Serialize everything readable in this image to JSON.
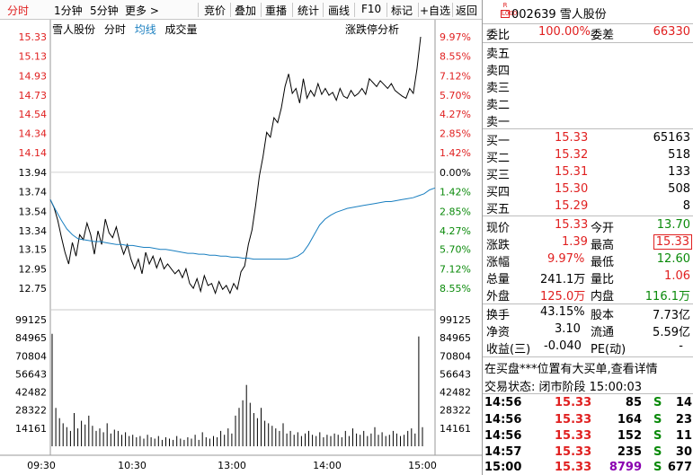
{
  "toolbar": {
    "left_tabs": [
      "分时",
      "1分钟",
      "5分钟",
      "更多 >"
    ],
    "right_tabs": [
      "竞价",
      "叠加",
      "重播",
      "统计",
      "画线",
      "F10",
      "标记",
      "+自选",
      "返回"
    ]
  },
  "chart_header": {
    "stock_name": "雪人股份",
    "mode": "分时",
    "avg_label": "均线",
    "vol_label": "成交量",
    "limit_analysis": "涨跌停分析"
  },
  "chart_data": {
    "type": "line",
    "price_axis": {
      "ticks": [
        "15.33",
        "15.13",
        "14.93",
        "14.73",
        "14.54",
        "14.34",
        "14.14",
        "13.94",
        "13.74",
        "13.54",
        "13.34",
        "13.15",
        "12.95",
        "12.75"
      ],
      "pct_ticks": [
        "9.97%",
        "8.55%",
        "7.12%",
        "5.70%",
        "4.27%",
        "2.85%",
        "1.42%",
        "0.00%",
        "1.42%",
        "2.85%",
        "4.27%",
        "5.70%",
        "7.12%",
        "8.55%"
      ],
      "range": [
        12.65,
        15.33
      ],
      "prev_close": 13.94
    },
    "volume_axis": {
      "ticks": [
        "99125",
        "84965",
        "70804",
        "56643",
        "42482",
        "28322",
        "14161"
      ],
      "range": [
        0,
        99125
      ]
    },
    "time_ticks": [
      "09:30",
      "10:30",
      "13:00",
      "14:00",
      "15:00"
    ],
    "series": [
      {
        "values": [
          13.66,
          13.58,
          13.45,
          13.28,
          13.12,
          13.0,
          13.22,
          13.08,
          13.3,
          13.25,
          13.42,
          13.3,
          13.1,
          13.34,
          13.2,
          13.46,
          13.32,
          13.27,
          13.38,
          13.22,
          13.1,
          13.2,
          13.05,
          12.95,
          13.05,
          12.9,
          13.12,
          13.0,
          13.08,
          12.96,
          13.06,
          12.95,
          13.0,
          12.95,
          12.9,
          12.94,
          12.86,
          12.95,
          12.8,
          12.75,
          12.85,
          12.72,
          12.88,
          12.78,
          12.8,
          12.7,
          12.82,
          12.74,
          12.78,
          12.7,
          12.8,
          12.74,
          12.92,
          12.98,
          13.2,
          13.35,
          13.6,
          13.9,
          14.1,
          14.35,
          14.3,
          14.5,
          14.45,
          14.6,
          14.82,
          14.95,
          14.75,
          14.8,
          14.65,
          14.9,
          14.7,
          14.78,
          14.72,
          14.85,
          14.74,
          14.8,
          14.73,
          14.76,
          14.68,
          14.8,
          14.72,
          14.7,
          14.78,
          14.72,
          14.75,
          14.8,
          14.74,
          14.9,
          14.86,
          14.82,
          14.88,
          14.84,
          14.8,
          14.85,
          14.78,
          14.75,
          14.72,
          14.7,
          14.8,
          14.75,
          15.0,
          15.33
        ]
      },
      {
        "values": [
          13.66,
          13.55,
          13.45,
          13.36,
          13.3,
          13.26,
          13.25,
          13.24,
          13.23,
          13.23,
          13.22,
          13.21,
          13.2,
          13.2,
          13.19,
          13.19,
          13.18,
          13.17,
          13.17,
          13.16,
          13.15,
          13.15,
          13.14,
          13.13,
          13.12,
          13.11,
          13.11,
          13.1,
          13.1,
          13.09,
          13.09,
          13.08,
          13.08,
          13.07,
          13.07,
          13.06,
          13.06,
          13.05,
          13.05,
          13.05,
          13.05,
          13.05,
          13.05,
          13.05,
          13.06,
          13.08,
          13.12,
          13.2,
          13.3,
          13.4,
          13.46,
          13.5,
          13.53,
          13.55,
          13.57,
          13.58,
          13.59,
          13.6,
          13.61,
          13.62,
          13.63,
          13.64,
          13.64,
          13.65,
          13.66,
          13.67,
          13.68,
          13.7,
          13.72,
          13.76,
          13.78
        ]
      }
    ],
    "volume": [
      88000,
      30000,
      22000,
      18000,
      15000,
      12000,
      26000,
      14000,
      20000,
      17000,
      24000,
      16000,
      12000,
      14000,
      11000,
      18000,
      10000,
      13000,
      12000,
      9000,
      11000,
      8000,
      9000,
      7000,
      8000,
      6000,
      9000,
      7000,
      6000,
      8000,
      5000,
      7000,
      6000,
      5000,
      8000,
      6000,
      5000,
      7000,
      6000,
      9000,
      5000,
      11000,
      7000,
      6000,
      8000,
      7000,
      12000,
      9000,
      14000,
      10000,
      24000,
      30000,
      36000,
      48000,
      34000,
      26000,
      22000,
      30000,
      20000,
      18000,
      16000,
      14000,
      12000,
      18000,
      10000,
      12000,
      9000,
      11000,
      8000,
      10000,
      12000,
      9000,
      8000,
      11000,
      7000,
      9000,
      8000,
      10000,
      9000,
      7000,
      12000,
      8000,
      14000,
      10000,
      9000,
      12000,
      8000,
      10000,
      15000,
      9000,
      11000,
      8000,
      9000,
      12000,
      10000,
      8000,
      9000,
      12000,
      14000,
      10000,
      86000,
      15000
    ]
  },
  "quote": {
    "code": "002639",
    "name": "雪人股份",
    "badge_top": "R",
    "badge_bottom": "L000",
    "weibi_label": "委比",
    "weibi": "100.00%",
    "weicha_label": "委差",
    "weicha": "66330",
    "sell_labels": [
      "卖五",
      "卖四",
      "卖三",
      "卖二",
      "卖一"
    ],
    "buy": [
      {
        "label": "买一",
        "price": "15.33",
        "vol": "65163"
      },
      {
        "label": "买二",
        "price": "15.32",
        "vol": "518"
      },
      {
        "label": "买三",
        "price": "15.31",
        "vol": "133"
      },
      {
        "label": "买四",
        "price": "15.30",
        "vol": "508"
      },
      {
        "label": "买五",
        "price": "15.29",
        "vol": "8"
      }
    ],
    "stats": {
      "xianjia_l": "现价",
      "xianjia": "15.33",
      "jinkai_l": "今开",
      "jinkai": "13.70",
      "zhangdie_l": "涨跌",
      "zhangdie": "1.39",
      "zuigao_l": "最高",
      "zuigao": "15.33",
      "zhangfu_l": "涨幅",
      "zhangfu": "9.97%",
      "zuidi_l": "最低",
      "zuidi": "12.60",
      "zongliang_l": "总量",
      "zongliang": "241.1万",
      "liangbi_l": "量比",
      "liangbi": "1.06",
      "waipan_l": "外盘",
      "waipan": "125.0万",
      "neipan_l": "内盘",
      "neipan": "116.1万",
      "huanshou_l": "换手",
      "huanshou": "43.15%",
      "guben_l": "股本",
      "guben": "7.73亿",
      "jingzi_l": "净资",
      "jingzi": "3.10",
      "liutong_l": "流通",
      "liutong": "5.59亿",
      "shouyi_l": "收益(三)",
      "shouyi": "-0.040",
      "pe_l": "PE(动)",
      "pe": "-"
    },
    "notice": "在买盘***位置有大买单,查看详情",
    "status": "交易状态: 闭市阶段 15:00:03",
    "ticks": [
      {
        "time": "14:56",
        "price": "15.33",
        "vol": "85",
        "side": "S",
        "count": "14"
      },
      {
        "time": "14:56",
        "price": "15.33",
        "vol": "164",
        "side": "S",
        "count": "23"
      },
      {
        "time": "14:56",
        "price": "15.33",
        "vol": "152",
        "side": "S",
        "count": "11"
      },
      {
        "time": "14:57",
        "price": "15.33",
        "vol": "235",
        "side": "S",
        "count": "30"
      },
      {
        "time": "15:00",
        "price": "15.33",
        "vol": "8799",
        "side": "S",
        "count": "677"
      }
    ]
  }
}
